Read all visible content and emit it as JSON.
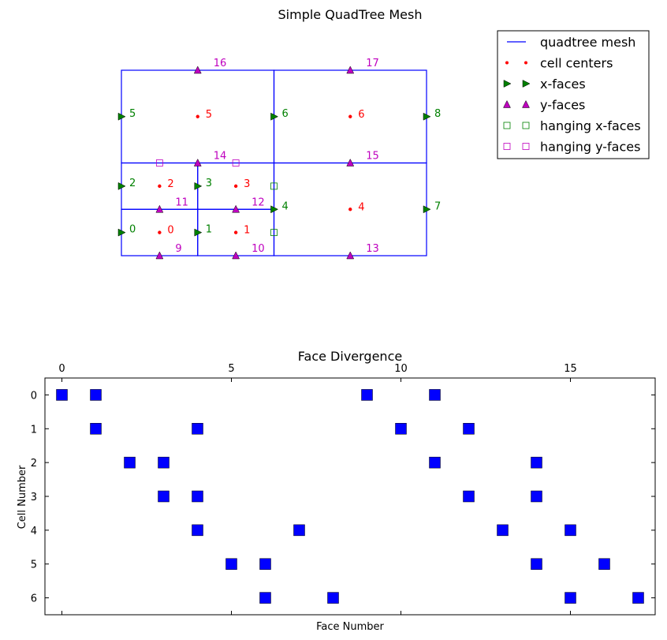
{
  "chart_data": [
    {
      "type": "scatter",
      "title": "Simple QuadTree Mesh",
      "axes_visible": false,
      "mesh_cells": [
        {
          "x0": 0.0,
          "y0": 0.0,
          "x1": 0.25,
          "y1": 0.25
        },
        {
          "x0": 0.25,
          "y0": 0.0,
          "x1": 0.5,
          "y1": 0.25
        },
        {
          "x0": 0.0,
          "y0": 0.25,
          "x1": 0.25,
          "y1": 0.5
        },
        {
          "x0": 0.25,
          "y0": 0.25,
          "x1": 0.5,
          "y1": 0.5
        },
        {
          "x0": 0.5,
          "y0": 0.0,
          "x1": 1.0,
          "y1": 0.5
        },
        {
          "x0": 0.0,
          "y0": 0.5,
          "x1": 0.5,
          "y1": 1.0
        },
        {
          "x0": 0.5,
          "y0": 0.5,
          "x1": 1.0,
          "y1": 1.0
        }
      ],
      "cell_centers": [
        {
          "label": "0",
          "x": 0.125,
          "y": 0.125
        },
        {
          "label": "1",
          "x": 0.375,
          "y": 0.125
        },
        {
          "label": "2",
          "x": 0.125,
          "y": 0.375
        },
        {
          "label": "3",
          "x": 0.375,
          "y": 0.375
        },
        {
          "label": "4",
          "x": 0.75,
          "y": 0.25
        },
        {
          "label": "5",
          "x": 0.25,
          "y": 0.75
        },
        {
          "label": "6",
          "x": 0.75,
          "y": 0.75
        }
      ],
      "x_faces": [
        {
          "label": "0",
          "x": 0.0,
          "y": 0.125
        },
        {
          "label": "1",
          "x": 0.25,
          "y": 0.125
        },
        {
          "label": "2",
          "x": 0.0,
          "y": 0.375
        },
        {
          "label": "3",
          "x": 0.25,
          "y": 0.375
        },
        {
          "label": "4",
          "x": 0.5,
          "y": 0.25
        },
        {
          "label": "5",
          "x": 0.0,
          "y": 0.75
        },
        {
          "label": "6",
          "x": 0.5,
          "y": 0.75
        },
        {
          "label": "7",
          "x": 1.0,
          "y": 0.25
        },
        {
          "label": "8",
          "x": 1.0,
          "y": 0.75
        }
      ],
      "y_faces": [
        {
          "label": "9",
          "x": 0.125,
          "y": 0.0
        },
        {
          "label": "10",
          "x": 0.375,
          "y": 0.0
        },
        {
          "label": "11",
          "x": 0.125,
          "y": 0.25
        },
        {
          "label": "12",
          "x": 0.375,
          "y": 0.25
        },
        {
          "label": "13",
          "x": 0.75,
          "y": 0.0
        },
        {
          "label": "14",
          "x": 0.25,
          "y": 0.5
        },
        {
          "label": "15",
          "x": 0.75,
          "y": 0.5
        },
        {
          "label": "16",
          "x": 0.25,
          "y": 1.0
        },
        {
          "label": "17",
          "x": 0.75,
          "y": 1.0
        }
      ],
      "hanging_x_faces": [
        {
          "x": 0.5,
          "y": 0.125
        },
        {
          "x": 0.5,
          "y": 0.375
        }
      ],
      "hanging_y_faces": [
        {
          "x": 0.125,
          "y": 0.5
        },
        {
          "x": 0.375,
          "y": 0.5
        }
      ],
      "legend": {
        "placement": "top-right",
        "entries": [
          {
            "label": "quadtree mesh",
            "color": "#0000ff",
            "marker": "line"
          },
          {
            "label": "cell centers",
            "color": "#ff0000",
            "marker": "dot"
          },
          {
            "label": "x-faces",
            "color": "#008000",
            "marker": "triangle-right"
          },
          {
            "label": "y-faces",
            "color": "#bf00bf",
            "marker": "triangle-up"
          },
          {
            "label": "hanging x-faces",
            "color": "#008000",
            "marker": "open-square"
          },
          {
            "label": "hanging y-faces",
            "color": "#bf00bf",
            "marker": "open-square"
          }
        ]
      }
    },
    {
      "type": "heatmap",
      "title": "Face Divergence",
      "xlabel": "Face Number",
      "ylabel": "Cell Number",
      "xlim": [
        -0.5,
        17.5
      ],
      "ylim": [
        6.5,
        -0.5
      ],
      "xticks": [
        0,
        5,
        10,
        15
      ],
      "yticks": [
        0,
        1,
        2,
        3,
        4,
        5,
        6
      ],
      "x_axis_position": "top",
      "marker_color": "#0000ff",
      "nonzeros": [
        {
          "cell": 0,
          "faces": [
            0,
            1,
            9,
            11
          ]
        },
        {
          "cell": 1,
          "faces": [
            1,
            4,
            10,
            12
          ]
        },
        {
          "cell": 2,
          "faces": [
            2,
            3,
            11,
            14
          ]
        },
        {
          "cell": 3,
          "faces": [
            3,
            4,
            12,
            14
          ]
        },
        {
          "cell": 4,
          "faces": [
            4,
            7,
            13,
            15
          ]
        },
        {
          "cell": 5,
          "faces": [
            5,
            6,
            14,
            16
          ]
        },
        {
          "cell": 6,
          "faces": [
            6,
            8,
            15,
            17
          ]
        }
      ]
    }
  ]
}
